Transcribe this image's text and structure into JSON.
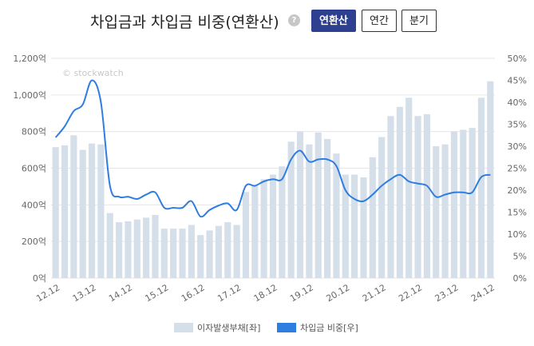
{
  "header": {
    "title": "차입금과 차입금 비중(연환산)",
    "help_label": "?",
    "buttons": [
      {
        "label": "연환산",
        "active": true
      },
      {
        "label": "연간",
        "active": false
      },
      {
        "label": "분기",
        "active": false
      }
    ]
  },
  "watermark": "© stockwatch",
  "colors": {
    "bar": "#d5dfea",
    "line": "#2e7de1",
    "grid": "#e6e6e6",
    "active_button": "#2f3f8f"
  },
  "chart_data": {
    "type": "bar+line",
    "left_axis": {
      "ticks": [
        "0억",
        "200억",
        "400억",
        "600억",
        "800억",
        "1,000억",
        "1,200억"
      ],
      "ylim": [
        0,
        1200
      ]
    },
    "right_axis": {
      "ticks": [
        "0%",
        "5%",
        "10%",
        "15%",
        "20%",
        "25%",
        "30%",
        "35%",
        "40%",
        "45%",
        "50%"
      ],
      "ylim": [
        0,
        50
      ]
    },
    "x_tick_labels": [
      "12.12",
      "13.12",
      "14.12",
      "15.12",
      "16.12",
      "17.12",
      "18.12",
      "19.12",
      "20.12",
      "21.12",
      "22.12",
      "23.12",
      "24.12"
    ],
    "series": [
      {
        "name": "이자발생부채[좌]",
        "type": "bar",
        "axis": "left",
        "values": [
          715,
          725,
          780,
          700,
          735,
          730,
          355,
          305,
          310,
          320,
          330,
          345,
          270,
          270,
          270,
          290,
          235,
          260,
          285,
          305,
          290,
          470,
          505,
          540,
          565,
          610,
          745,
          800,
          730,
          795,
          760,
          680,
          565,
          565,
          550,
          660,
          770,
          885,
          935,
          985,
          885,
          895,
          720,
          730,
          800,
          810,
          820,
          985,
          1075
        ]
      },
      {
        "name": "차입금 비중[우]",
        "type": "line",
        "axis": "right",
        "values": [
          32.0,
          34.5,
          38.0,
          39.5,
          45.0,
          40.0,
          21.0,
          18.5,
          18.5,
          18.0,
          19.0,
          19.5,
          16.0,
          16.0,
          16.0,
          17.5,
          14.0,
          15.5,
          16.5,
          17.0,
          15.5,
          21.0,
          21.0,
          22.0,
          22.5,
          22.5,
          27.0,
          29.0,
          26.5,
          27.0,
          27.0,
          25.5,
          20.0,
          18.0,
          17.5,
          19.0,
          21.0,
          22.5,
          23.5,
          22.0,
          21.5,
          21.0,
          18.5,
          19.0,
          19.5,
          19.5,
          19.5,
          23.0,
          23.5
        ]
      }
    ]
  }
}
